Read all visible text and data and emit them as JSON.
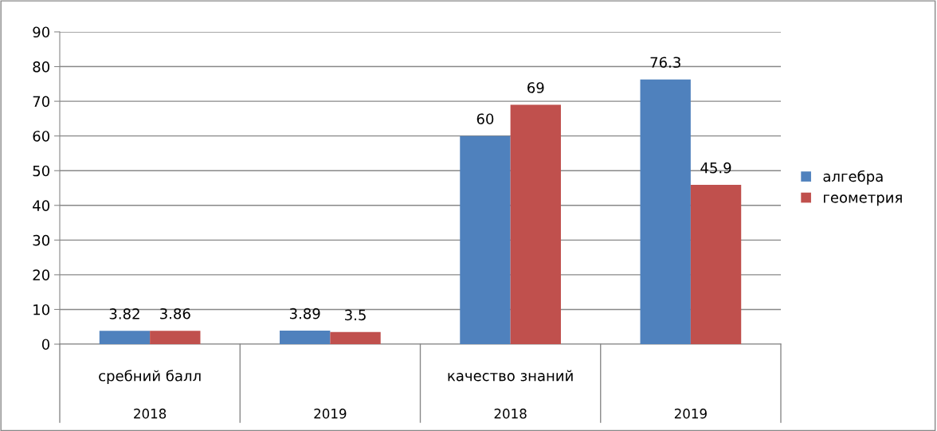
{
  "chart_data": {
    "type": "bar",
    "categories": [
      "2018",
      "2019",
      "2018",
      "2019"
    ],
    "series": [
      {
        "name": "алгебра",
        "color": "#4f81bd",
        "values": [
          3.82,
          3.89,
          60,
          76.3
        ]
      },
      {
        "name": "геометрия",
        "color": "#c0504d",
        "values": [
          3.86,
          3.5,
          69,
          45.9
        ]
      }
    ],
    "annotations": [
      "сребний балл",
      "качество знаний"
    ],
    "ylim": [
      0,
      90
    ],
    "yticks": [
      0,
      10,
      20,
      30,
      40,
      50,
      60,
      70,
      80,
      90
    ],
    "grid": "y",
    "legend": "right",
    "data_labels": true
  }
}
